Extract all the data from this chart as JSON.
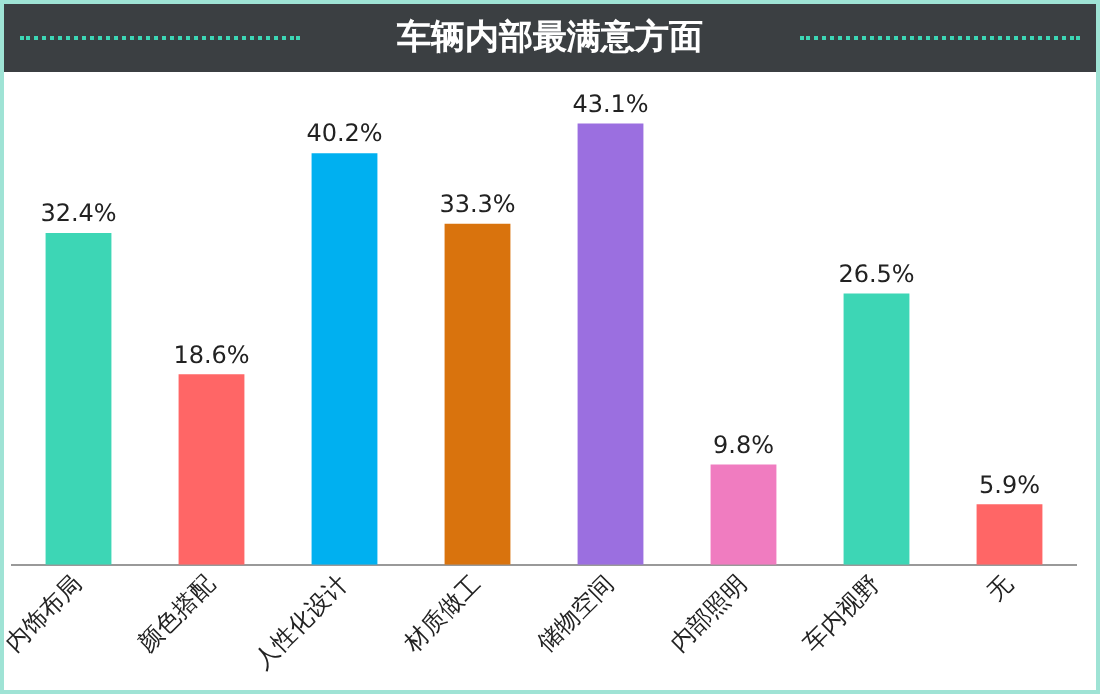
{
  "chart_data": {
    "type": "bar",
    "title": "车辆内部最满意方面",
    "categories": [
      "内饰布局",
      "颜色搭配",
      "人性化设计",
      "材质做工",
      "储物空间",
      "内部照明",
      "车内视野",
      "无"
    ],
    "values": [
      32.4,
      18.6,
      40.2,
      33.3,
      43.1,
      9.8,
      26.5,
      5.9
    ],
    "colors": [
      "#3dd6b5",
      "#ff6666",
      "#00b0f0",
      "#d9730d",
      "#9b6fe0",
      "#f07cc0",
      "#3dd6b5",
      "#ff6666"
    ],
    "value_labels": [
      "32.4%",
      "18.6%",
      "40.2%",
      "33.3%",
      "43.1%",
      "9.8%",
      "26.5%",
      "5.9%"
    ],
    "grid": false,
    "legend": false
  }
}
